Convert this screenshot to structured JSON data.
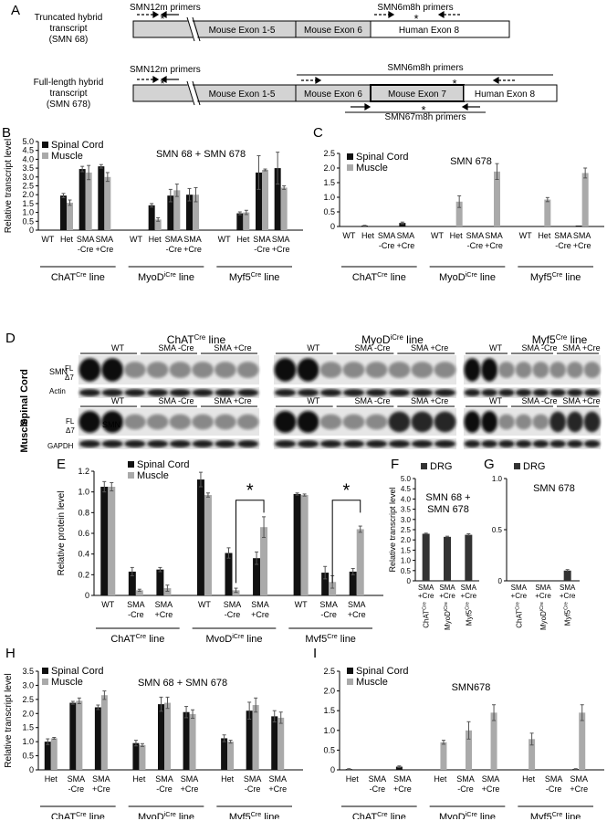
{
  "panel_letters": {
    "A": "A",
    "B": "B",
    "C": "C",
    "D": "D",
    "E": "E",
    "F": "F",
    "G": "G",
    "H": "H",
    "I": "I"
  },
  "panelA": {
    "trunc_label": [
      "Truncated hybrid",
      "transcript",
      "(SMN 68)"
    ],
    "full_label": [
      "Full-length hybrid",
      "transcript",
      "(SMN 678)"
    ],
    "smn12m": "SMN12m primers",
    "smn6m8h": "SMN6m8h primers",
    "smn67m8h": "SMN67m8h primers",
    "exon15": "Mouse Exon 1-5",
    "exon6": "Mouse Exon 6",
    "exon7": "Mouse Exon 7",
    "exon8": "Human Exon 8",
    "star": "*"
  },
  "common": {
    "spinal": "Spinal Cord",
    "muscle": "Muscle",
    "drg": "DRG",
    "ylabel_transcript": "Relative transcript level",
    "ylabel_protein": "Relative protein level",
    "line_base": [
      "ChAT",
      "MyoD",
      "Myf5"
    ],
    "line_sup": [
      "Cre",
      "iCre",
      "Cre"
    ],
    "line_suffix": " line",
    "cat_wt": "WT",
    "cat_het": "Het",
    "cat_sma": "SMA",
    "cat_minus": "-Cre",
    "cat_plus": "+Cre"
  },
  "panelD": {
    "titles": [
      "ChAT",
      "MyoD",
      "Myf5"
    ],
    "title_sup": [
      "Cre",
      "iCre",
      "Cre"
    ],
    "title_suffix": " line",
    "wt": "WT",
    "sma_minus": "SMA -Cre",
    "sma_plus": "SMA +Cre",
    "smn": "SMN",
    "fl": "FL",
    "d7": "Δ7",
    "actin": "Actin",
    "gapdh": "GAPDH",
    "spinal": "Spinal Cord",
    "muscle": "Muscle"
  },
  "chart_data": [
    {
      "id": "B",
      "type": "bar",
      "title": "SMN 68 + SMN 678",
      "ylabel": "Relative transcript level",
      "ylim": [
        0,
        5
      ],
      "yticks": [
        "0",
        "0.5",
        "1.0",
        "1.5",
        "2.0",
        "2.5",
        "3.0",
        "3.5",
        "4.0",
        "4.5",
        "5.0"
      ],
      "groups": [
        "ChAT",
        "MyoD",
        "Myf5"
      ],
      "categories": [
        "WT",
        "Het",
        "SMA -Cre",
        "SMA +Cre"
      ],
      "series": [
        {
          "name": "Spinal Cord",
          "color": "#111111",
          "values": [
            [
              0,
              1.95,
              3.45,
              3.6
            ],
            [
              0,
              1.4,
              1.95,
              2.0
            ],
            [
              0,
              0.95,
              3.25,
              3.5
            ]
          ],
          "errors": [
            [
              0,
              0.12,
              0.15,
              0.1
            ],
            [
              0,
              0.1,
              0.35,
              0.35
            ],
            [
              0,
              0.08,
              0.95,
              0.9
            ]
          ]
        },
        {
          "name": "Muscle",
          "color": "#aaaaaa",
          "values": [
            [
              0,
              1.55,
              3.25,
              3.0
            ],
            [
              0,
              0.6,
              2.25,
              2.0
            ],
            [
              0,
              1.0,
              3.4,
              2.4
            ]
          ],
          "errors": [
            [
              0,
              0.15,
              0.4,
              0.25
            ],
            [
              0,
              0.1,
              0.35,
              0.4
            ],
            [
              0,
              0.12,
              0.05,
              0.1
            ]
          ]
        }
      ]
    },
    {
      "id": "C",
      "type": "bar",
      "title": "SMN 678",
      "ylabel": "",
      "ylim": [
        0,
        2.5
      ],
      "yticks": [
        "0",
        "0.5",
        "1.0",
        "1.5",
        "2.0",
        "2.5"
      ],
      "groups": [
        "ChAT",
        "MyoD",
        "Myf5"
      ],
      "categories": [
        "WT",
        "Het",
        "SMA -Cre",
        "SMA +Cre"
      ],
      "series": [
        {
          "name": "Spinal Cord",
          "color": "#111111",
          "values": [
            [
              0,
              0.03,
              0,
              0.12
            ],
            [
              0,
              0,
              0,
              0
            ],
            [
              0,
              0,
              0,
              0.03
            ]
          ],
          "errors": [
            [
              0,
              0.01,
              0,
              0.03
            ],
            [
              0,
              0,
              0,
              0
            ],
            [
              0,
              0,
              0,
              0
            ]
          ]
        },
        {
          "name": "Muscle",
          "color": "#aaaaaa",
          "values": [
            [
              0,
              0,
              0,
              0
            ],
            [
              0,
              0.85,
              0,
              1.88
            ],
            [
              0,
              0.92,
              0,
              1.83
            ]
          ],
          "errors": [
            [
              0,
              0,
              0,
              0
            ],
            [
              0,
              0.2,
              0,
              0.27
            ],
            [
              0,
              0.07,
              0,
              0.17
            ]
          ]
        }
      ]
    },
    {
      "id": "E",
      "type": "bar",
      "title": "",
      "ylabel": "Relative protein level",
      "ylim": [
        0,
        1.2
      ],
      "yticks": [
        "0",
        "0.2",
        "0.4",
        "0.6",
        "0.8",
        "1.0",
        "1.2"
      ],
      "groups": [
        "ChAT",
        "MyoD",
        "Myf5"
      ],
      "categories": [
        "WT",
        "SMA -Cre",
        "SMA +Cre"
      ],
      "series": [
        {
          "name": "Spinal Cord",
          "color": "#111111",
          "values": [
            [
              1.05,
              0.23,
              0.25
            ],
            [
              1.12,
              0.41,
              0.36
            ],
            [
              0.98,
              0.22,
              0.23
            ]
          ],
          "errors": [
            [
              0.05,
              0.04,
              0.02
            ],
            [
              0.07,
              0.05,
              0.06
            ],
            [
              0.01,
              0.06,
              0.03
            ]
          ]
        },
        {
          "name": "Muscle",
          "color": "#aaaaaa",
          "values": [
            [
              1.05,
              0.05,
              0.07
            ],
            [
              0.97,
              0.05,
              0.66
            ],
            [
              0.97,
              0.13,
              0.64
            ]
          ],
          "errors": [
            [
              0.04,
              0.01,
              0.03
            ],
            [
              0.02,
              0.02,
              0.1
            ],
            [
              0.01,
              0.06,
              0.03
            ]
          ]
        }
      ],
      "significance": [
        {
          "group": 1,
          "label": "*"
        },
        {
          "group": 2,
          "label": "*"
        }
      ]
    },
    {
      "id": "F",
      "type": "bar",
      "title": "SMN 68 + SMN 678",
      "ylabel": "Relative transcript level",
      "ylim": [
        0,
        5
      ],
      "yticks": [
        "0",
        "0.5",
        "1.0",
        "1.5",
        "2.0",
        "2.5",
        "3.0",
        "3.5",
        "4.0",
        "4.5",
        "5.0"
      ],
      "categories": [
        "SMA +Cre",
        "SMA +Cre",
        "SMA +Cre"
      ],
      "xsub": [
        "ChAT",
        "MyoD",
        "Myf5"
      ],
      "series": [
        {
          "name": "DRG",
          "color": "#333333",
          "values": [
            2.3,
            2.15,
            2.25
          ],
          "errors": [
            0.03,
            0.03,
            0.05
          ]
        }
      ]
    },
    {
      "id": "G",
      "type": "bar",
      "title": "SMN 678",
      "ylabel": "",
      "ylim": [
        0,
        1
      ],
      "yticks": [
        "0",
        "0.5",
        "1.0"
      ],
      "categories": [
        "SMA +Cre",
        "SMA +Cre",
        "SMA +Cre"
      ],
      "xsub": [
        "ChAT",
        "MyoD",
        "Myf5"
      ],
      "series": [
        {
          "name": "DRG",
          "color": "#333333",
          "values": [
            0,
            0,
            0.1
          ],
          "errors": [
            0,
            0,
            0.01
          ]
        }
      ]
    },
    {
      "id": "H",
      "type": "bar",
      "title": "SMN 68 + SMN 678",
      "ylabel": "Relative transcript level",
      "ylim": [
        0,
        3.5
      ],
      "yticks": [
        "0",
        "0.5",
        "1.0",
        "1.5",
        "2.0",
        "2.5",
        "3.0",
        "3.5"
      ],
      "groups": [
        "ChAT",
        "MyoD",
        "Myf5"
      ],
      "categories": [
        "Het",
        "SMA -Cre",
        "SMA +Cre"
      ],
      "series": [
        {
          "name": "Spinal Cord",
          "color": "#111111",
          "values": [
            [
              1.0,
              2.38,
              2.22
            ],
            [
              0.95,
              2.33,
              2.05
            ],
            [
              1.12,
              2.1,
              1.9
            ]
          ],
          "errors": [
            [
              0.1,
              0.05,
              0.08
            ],
            [
              0.1,
              0.25,
              0.2
            ],
            [
              0.12,
              0.3,
              0.2
            ]
          ]
        },
        {
          "name": "Muscle",
          "color": "#aaaaaa",
          "values": [
            [
              1.12,
              2.45,
              2.65
            ],
            [
              0.88,
              2.38,
              1.98
            ],
            [
              1.0,
              2.3,
              1.85
            ]
          ],
          "errors": [
            [
              0.03,
              0.1,
              0.15
            ],
            [
              0.05,
              0.2,
              0.15
            ],
            [
              0.05,
              0.25,
              0.2
            ]
          ]
        }
      ]
    },
    {
      "id": "I",
      "type": "bar",
      "title": "SMN678",
      "ylabel": "",
      "ylim": [
        0,
        2.5
      ],
      "yticks": [
        "0",
        "0.5",
        "1.0",
        "1.5",
        "2.0",
        "2.5"
      ],
      "groups": [
        "ChAT",
        "MyoD",
        "Myf5"
      ],
      "categories": [
        "Het",
        "SMA -Cre",
        "SMA +Cre"
      ],
      "series": [
        {
          "name": "Spinal Cord",
          "color": "#111111",
          "values": [
            [
              0.02,
              0,
              0.08
            ],
            [
              0,
              0,
              0
            ],
            [
              0,
              0,
              0.02
            ]
          ],
          "errors": [
            [
              0.01,
              0,
              0.02
            ],
            [
              0,
              0,
              0
            ],
            [
              0,
              0,
              0.01
            ]
          ]
        },
        {
          "name": "Muscle",
          "color": "#aaaaaa",
          "values": [
            [
              0,
              0,
              0
            ],
            [
              0.7,
              1.0,
              1.45
            ],
            [
              0.78,
              0,
              1.45
            ]
          ],
          "errors": [
            [
              0,
              0,
              0
            ],
            [
              0.05,
              0.22,
              0.2
            ],
            [
              0.15,
              0,
              0.2
            ]
          ]
        }
      ]
    }
  ]
}
